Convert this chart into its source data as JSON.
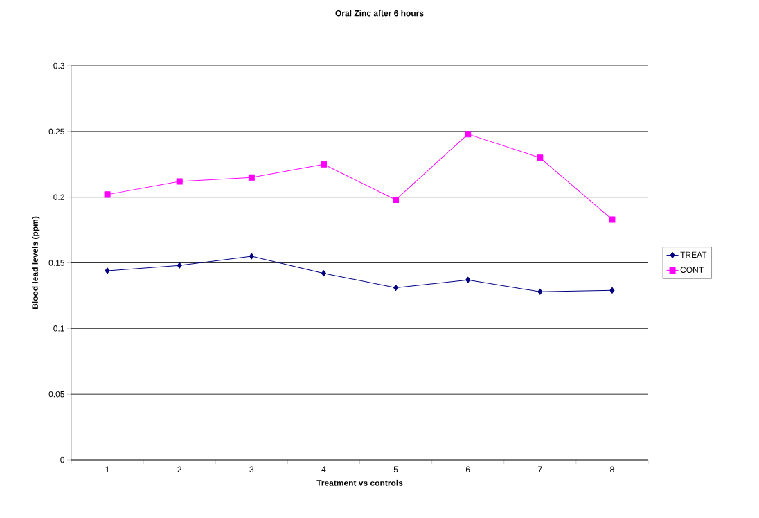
{
  "chart_data": {
    "type": "line",
    "title": "Oral Zinc after 6 hours",
    "xlabel": "Treatment vs controls",
    "ylabel": "Blood lead levels (ppm)",
    "categories": [
      "1",
      "2",
      "3",
      "4",
      "5",
      "6",
      "7",
      "8"
    ],
    "series": [
      {
        "name": "TREAT",
        "color": "#000080",
        "marker": "diamond",
        "values": [
          0.144,
          0.148,
          0.155,
          0.142,
          0.131,
          0.137,
          0.128,
          0.129
        ]
      },
      {
        "name": "CONT",
        "color": "#ff00ff",
        "marker": "square",
        "values": [
          0.202,
          0.212,
          0.215,
          0.225,
          0.198,
          0.248,
          0.23,
          0.183
        ]
      }
    ],
    "ylim": [
      0,
      0.3
    ],
    "yticks": [
      0,
      0.05,
      0.1,
      0.15,
      0.2,
      0.25,
      0.3
    ],
    "grid": "y",
    "legend": "right",
    "line_style": "solid"
  }
}
